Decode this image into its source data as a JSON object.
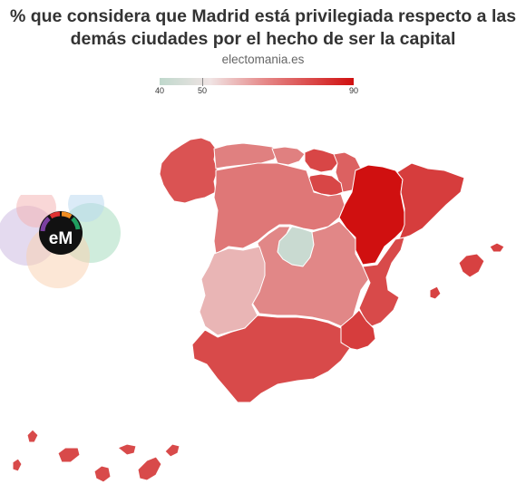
{
  "title_line1": "% que considera que Madrid está privilegiada respecto a las",
  "title_line2": "demás ciudades por el hecho de ser la capital",
  "source": "electomania.es",
  "legend": {
    "min": "40",
    "mid": "50",
    "max": "90"
  },
  "logo_text": "eM",
  "colors": {
    "low": "#bfd8cc",
    "neutral": "#f0e4e4",
    "medium": "#e08080",
    "high": "#d01010"
  },
  "regions": [
    {
      "name": "Galicia",
      "value": 75
    },
    {
      "name": "Asturias",
      "value": 65
    },
    {
      "name": "Cantabria",
      "value": 65
    },
    {
      "name": "País Vasco",
      "value": 78
    },
    {
      "name": "Navarra",
      "value": 72
    },
    {
      "name": "La Rioja",
      "value": 78
    },
    {
      "name": "Aragón",
      "value": 90
    },
    {
      "name": "Cataluña",
      "value": 80
    },
    {
      "name": "Castilla y León",
      "value": 67
    },
    {
      "name": "Madrid",
      "value": 42
    },
    {
      "name": "Castilla-La Mancha",
      "value": 64
    },
    {
      "name": "Extremadura",
      "value": 57
    },
    {
      "name": "C. Valenciana",
      "value": 77
    },
    {
      "name": "Murcia",
      "value": 80
    },
    {
      "name": "Andalucía",
      "value": 77
    },
    {
      "name": "Baleares",
      "value": 79
    },
    {
      "name": "Canarias",
      "value": 77
    }
  ]
}
